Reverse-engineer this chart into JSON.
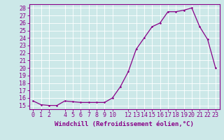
{
  "x": [
    0,
    1,
    2,
    3,
    4,
    5,
    6,
    7,
    8,
    9,
    10,
    11,
    12,
    13,
    14,
    15,
    16,
    17,
    18,
    19,
    20,
    21,
    22,
    23
  ],
  "y": [
    15.6,
    15.1,
    15.0,
    15.0,
    15.6,
    15.5,
    15.4,
    15.4,
    15.4,
    15.4,
    16.0,
    17.5,
    19.5,
    22.5,
    24.0,
    25.5,
    26.0,
    27.5,
    27.5,
    27.7,
    28.0,
    25.5,
    23.8,
    20.0
  ],
  "line_color": "#880088",
  "marker_color": "#880088",
  "bg_color": "#cce8e8",
  "grid_color": "#ffffff",
  "xlabel": "Windchill (Refroidissement éolien,°C)",
  "xlim": [
    -0.5,
    23.5
  ],
  "ylim": [
    14.5,
    28.5
  ],
  "yticks": [
    15,
    16,
    17,
    18,
    19,
    20,
    21,
    22,
    23,
    24,
    25,
    26,
    27,
    28
  ],
  "xticks": [
    0,
    1,
    2,
    4,
    5,
    6,
    7,
    8,
    9,
    10,
    12,
    13,
    14,
    15,
    16,
    17,
    18,
    19,
    20,
    21,
    22,
    23
  ],
  "font_size": 6,
  "xlabel_fontsize": 6.5
}
